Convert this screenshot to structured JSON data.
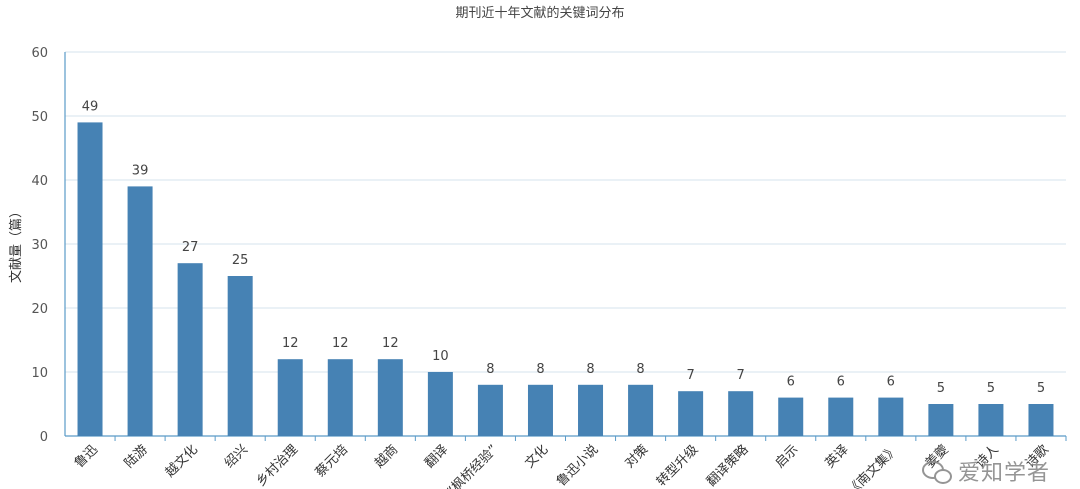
{
  "chart_data": {
    "type": "bar",
    "title": "期刊近十年文献的关键词分布",
    "xlabel": "",
    "ylabel": "文献量（篇）",
    "ylim": [
      0,
      60
    ],
    "yticks": [
      0,
      10,
      20,
      30,
      40,
      50,
      60
    ],
    "grid": true,
    "bar_color": "#4682b4",
    "categories": [
      "鲁迅",
      "陆游",
      "越文化",
      "绍兴",
      "乡村治理",
      "蔡元培",
      "越商",
      "翻译",
      "“枫桥经验”",
      "文化",
      "鲁迅小说",
      "对策",
      "转型升级",
      "翻译策略",
      "启示",
      "英译",
      "《南文集》",
      "姜夔",
      "诗人",
      "诗歌"
    ],
    "values": [
      49,
      39,
      27,
      25,
      12,
      12,
      12,
      10,
      8,
      8,
      8,
      8,
      7,
      7,
      6,
      6,
      6,
      5,
      5,
      5
    ]
  },
  "watermark": {
    "icon": "wechat-icon",
    "text": "爱知学者"
  }
}
